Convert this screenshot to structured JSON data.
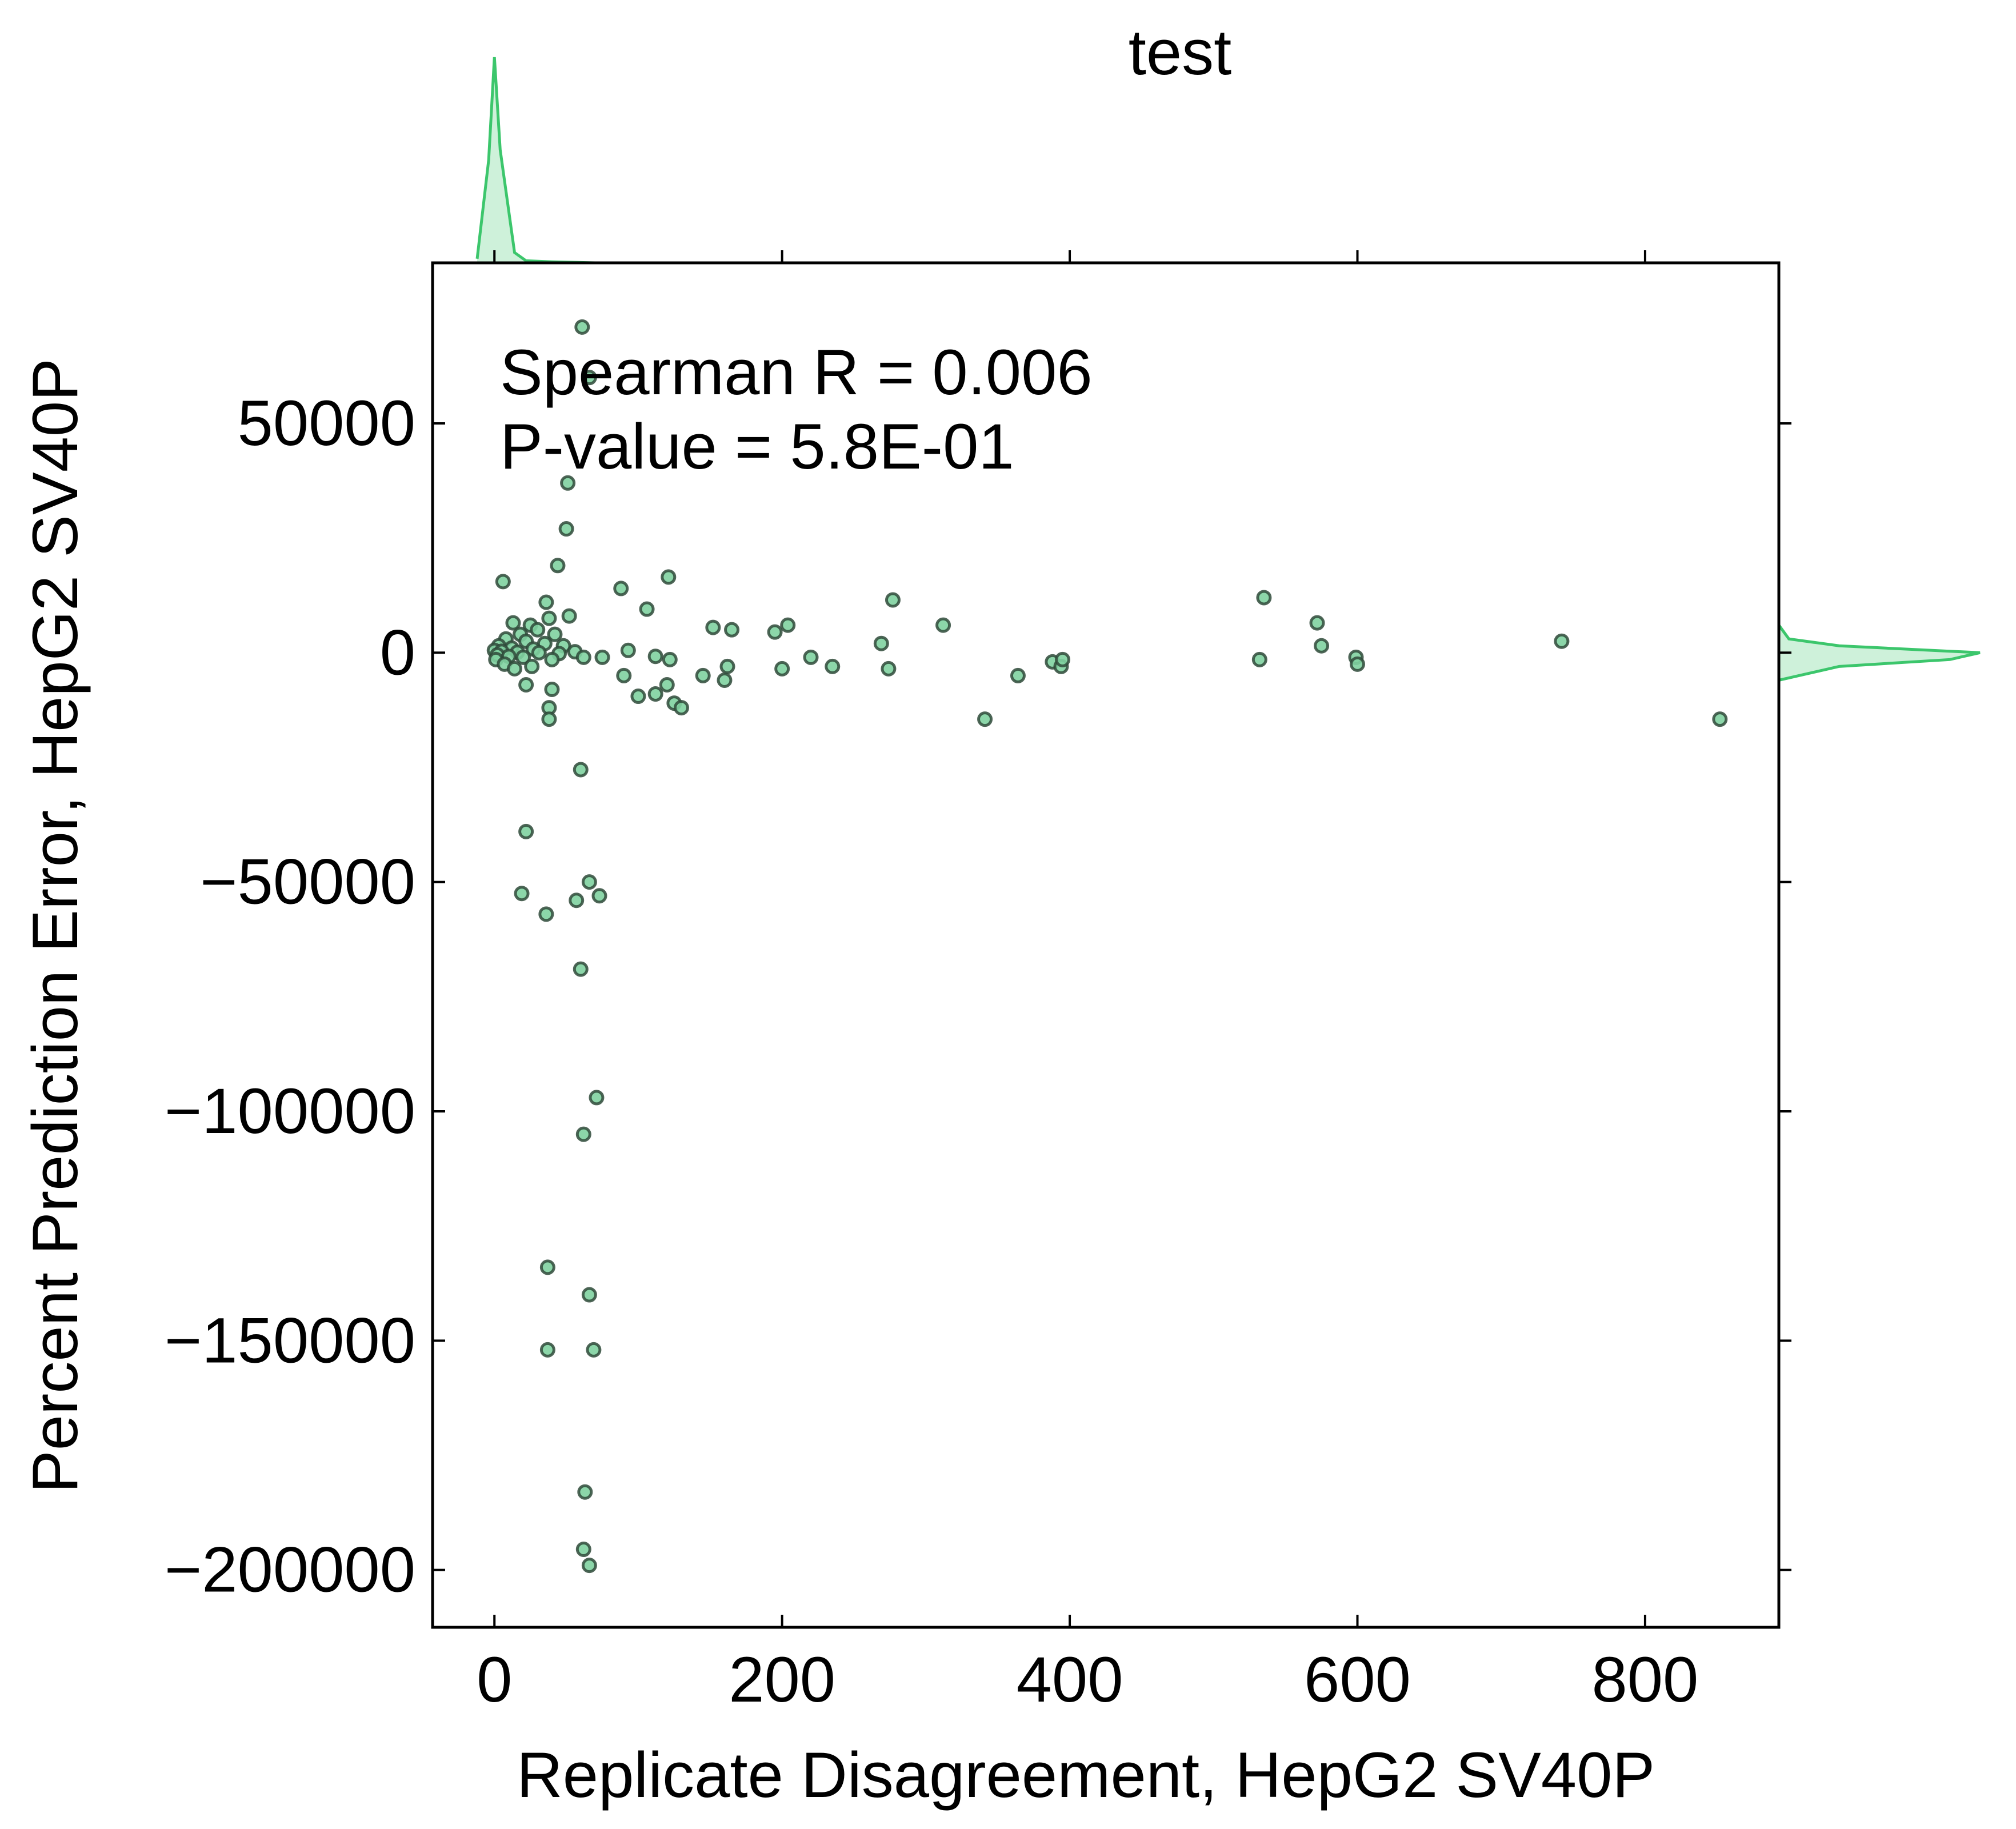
{
  "chart_data": {
    "type": "scatter",
    "title": "test",
    "xlabel": "Replicate Disagreement, HepG2 SV40P",
    "ylabel": "Percent Prediction Error, HepG2 SV40P",
    "xlim": [
      -43,
      893
    ],
    "ylim": [
      -212500,
      85000
    ],
    "xticks": [
      0,
      200,
      400,
      600,
      800
    ],
    "yticks": [
      50000,
      0,
      -50000,
      -100000,
      -150000,
      -200000
    ],
    "xtick_labels": [
      "0",
      "200",
      "400",
      "600",
      "800"
    ],
    "ytick_labels": [
      "50000",
      "0",
      "−50000",
      "−100000",
      "−150000",
      "−200000"
    ],
    "annotation": {
      "line1": "Spearman R = 0.006",
      "line2": "P-value = 5.8E-01"
    },
    "grid": false,
    "colors": {
      "marker_fill": "#7fd1a0",
      "marker_edge": "#2f4a3a",
      "kde": "#3cc66c"
    },
    "points": [
      {
        "x": 61,
        "y": 71000
      },
      {
        "x": 66,
        "y": 60000
      },
      {
        "x": 51,
        "y": 37000
      },
      {
        "x": 50,
        "y": 27000
      },
      {
        "x": 44,
        "y": 19000
      },
      {
        "x": 6,
        "y": 15500
      },
      {
        "x": 121,
        "y": 16500
      },
      {
        "x": 88,
        "y": 14000
      },
      {
        "x": 36,
        "y": 11000
      },
      {
        "x": 106,
        "y": 9500
      },
      {
        "x": 52,
        "y": 8000
      },
      {
        "x": 38,
        "y": 7500
      },
      {
        "x": 13,
        "y": 6500
      },
      {
        "x": 25,
        "y": 6000
      },
      {
        "x": 30,
        "y": 5000
      },
      {
        "x": 18,
        "y": 4000
      },
      {
        "x": 42,
        "y": 4000
      },
      {
        "x": 8,
        "y": 3000
      },
      {
        "x": 22,
        "y": 2500
      },
      {
        "x": 35,
        "y": 2000
      },
      {
        "x": 48,
        "y": 1500
      },
      {
        "x": 3,
        "y": 1500
      },
      {
        "x": 12,
        "y": 1000
      },
      {
        "x": 27,
        "y": 800
      },
      {
        "x": 0,
        "y": 500
      },
      {
        "x": 5,
        "y": 300
      },
      {
        "x": 16,
        "y": 100
      },
      {
        "x": 31,
        "y": 0
      },
      {
        "x": 45,
        "y": -200
      },
      {
        "x": 56,
        "y": 200
      },
      {
        "x": 2,
        "y": -500
      },
      {
        "x": 10,
        "y": -800
      },
      {
        "x": 20,
        "y": -1000
      },
      {
        "x": 40,
        "y": -1500
      },
      {
        "x": 1,
        "y": -1500
      },
      {
        "x": 7,
        "y": -2500
      },
      {
        "x": 26,
        "y": -3000
      },
      {
        "x": 14,
        "y": -3500
      },
      {
        "x": 62,
        "y": -1000
      },
      {
        "x": 75,
        "y": -1000
      },
      {
        "x": 93,
        "y": 500
      },
      {
        "x": 112,
        "y": -800
      },
      {
        "x": 122,
        "y": -1500
      },
      {
        "x": 90,
        "y": -5000
      },
      {
        "x": 120,
        "y": -7000
      },
      {
        "x": 112,
        "y": -9000
      },
      {
        "x": 100,
        "y": -9500
      },
      {
        "x": 125,
        "y": -11000
      },
      {
        "x": 130,
        "y": -12000
      },
      {
        "x": 145,
        "y": -5000
      },
      {
        "x": 160,
        "y": -6000
      },
      {
        "x": 162,
        "y": -3000
      },
      {
        "x": 152,
        "y": 5500
      },
      {
        "x": 165,
        "y": 5000
      },
      {
        "x": 195,
        "y": 4500
      },
      {
        "x": 204,
        "y": 6000
      },
      {
        "x": 200,
        "y": -3500
      },
      {
        "x": 220,
        "y": -1000
      },
      {
        "x": 235,
        "y": -3000
      },
      {
        "x": 269,
        "y": 2000
      },
      {
        "x": 274,
        "y": -3500
      },
      {
        "x": 277,
        "y": 11500
      },
      {
        "x": 312,
        "y": 6000
      },
      {
        "x": 341,
        "y": -14500
      },
      {
        "x": 364,
        "y": -5000
      },
      {
        "x": 388,
        "y": -2000
      },
      {
        "x": 394,
        "y": -3000
      },
      {
        "x": 395,
        "y": -1500
      },
      {
        "x": 532,
        "y": -1500
      },
      {
        "x": 535,
        "y": 12000
      },
      {
        "x": 572,
        "y": 6500
      },
      {
        "x": 575,
        "y": 1500
      },
      {
        "x": 599,
        "y": -1000
      },
      {
        "x": 600,
        "y": -2500
      },
      {
        "x": 742,
        "y": 2500
      },
      {
        "x": 852,
        "y": -14500
      },
      {
        "x": 40,
        "y": -8000
      },
      {
        "x": 38,
        "y": -12000
      },
      {
        "x": 38,
        "y": -14500
      },
      {
        "x": 22,
        "y": -7000
      },
      {
        "x": 60,
        "y": -25500
      },
      {
        "x": 22,
        "y": -39000
      },
      {
        "x": 19,
        "y": -52500
      },
      {
        "x": 36,
        "y": -57000
      },
      {
        "x": 57,
        "y": -54000
      },
      {
        "x": 66,
        "y": -50000
      },
      {
        "x": 73,
        "y": -53000
      },
      {
        "x": 60,
        "y": -69000
      },
      {
        "x": 71,
        "y": -97000
      },
      {
        "x": 62,
        "y": -105000
      },
      {
        "x": 37,
        "y": -134000
      },
      {
        "x": 66,
        "y": -140000
      },
      {
        "x": 37,
        "y": -152000
      },
      {
        "x": 69,
        "y": -152000
      },
      {
        "x": 63,
        "y": -183000
      },
      {
        "x": 62,
        "y": -195500
      },
      {
        "x": 66,
        "y": -199000
      }
    ],
    "kde_x": {
      "x": [
        -12,
        -4,
        0,
        4,
        8,
        14,
        22,
        40,
        70
      ],
      "density": [
        0.02,
        0.5,
        1.0,
        0.55,
        0.35,
        0.05,
        0.01,
        0.005,
        0
      ]
    },
    "kde_y": {
      "y": [
        -6000,
        -3000,
        -1500,
        0,
        1500,
        3000,
        6000
      ],
      "density": [
        0.0,
        0.3,
        0.85,
        1.0,
        0.3,
        0.05,
        0.0
      ]
    }
  }
}
